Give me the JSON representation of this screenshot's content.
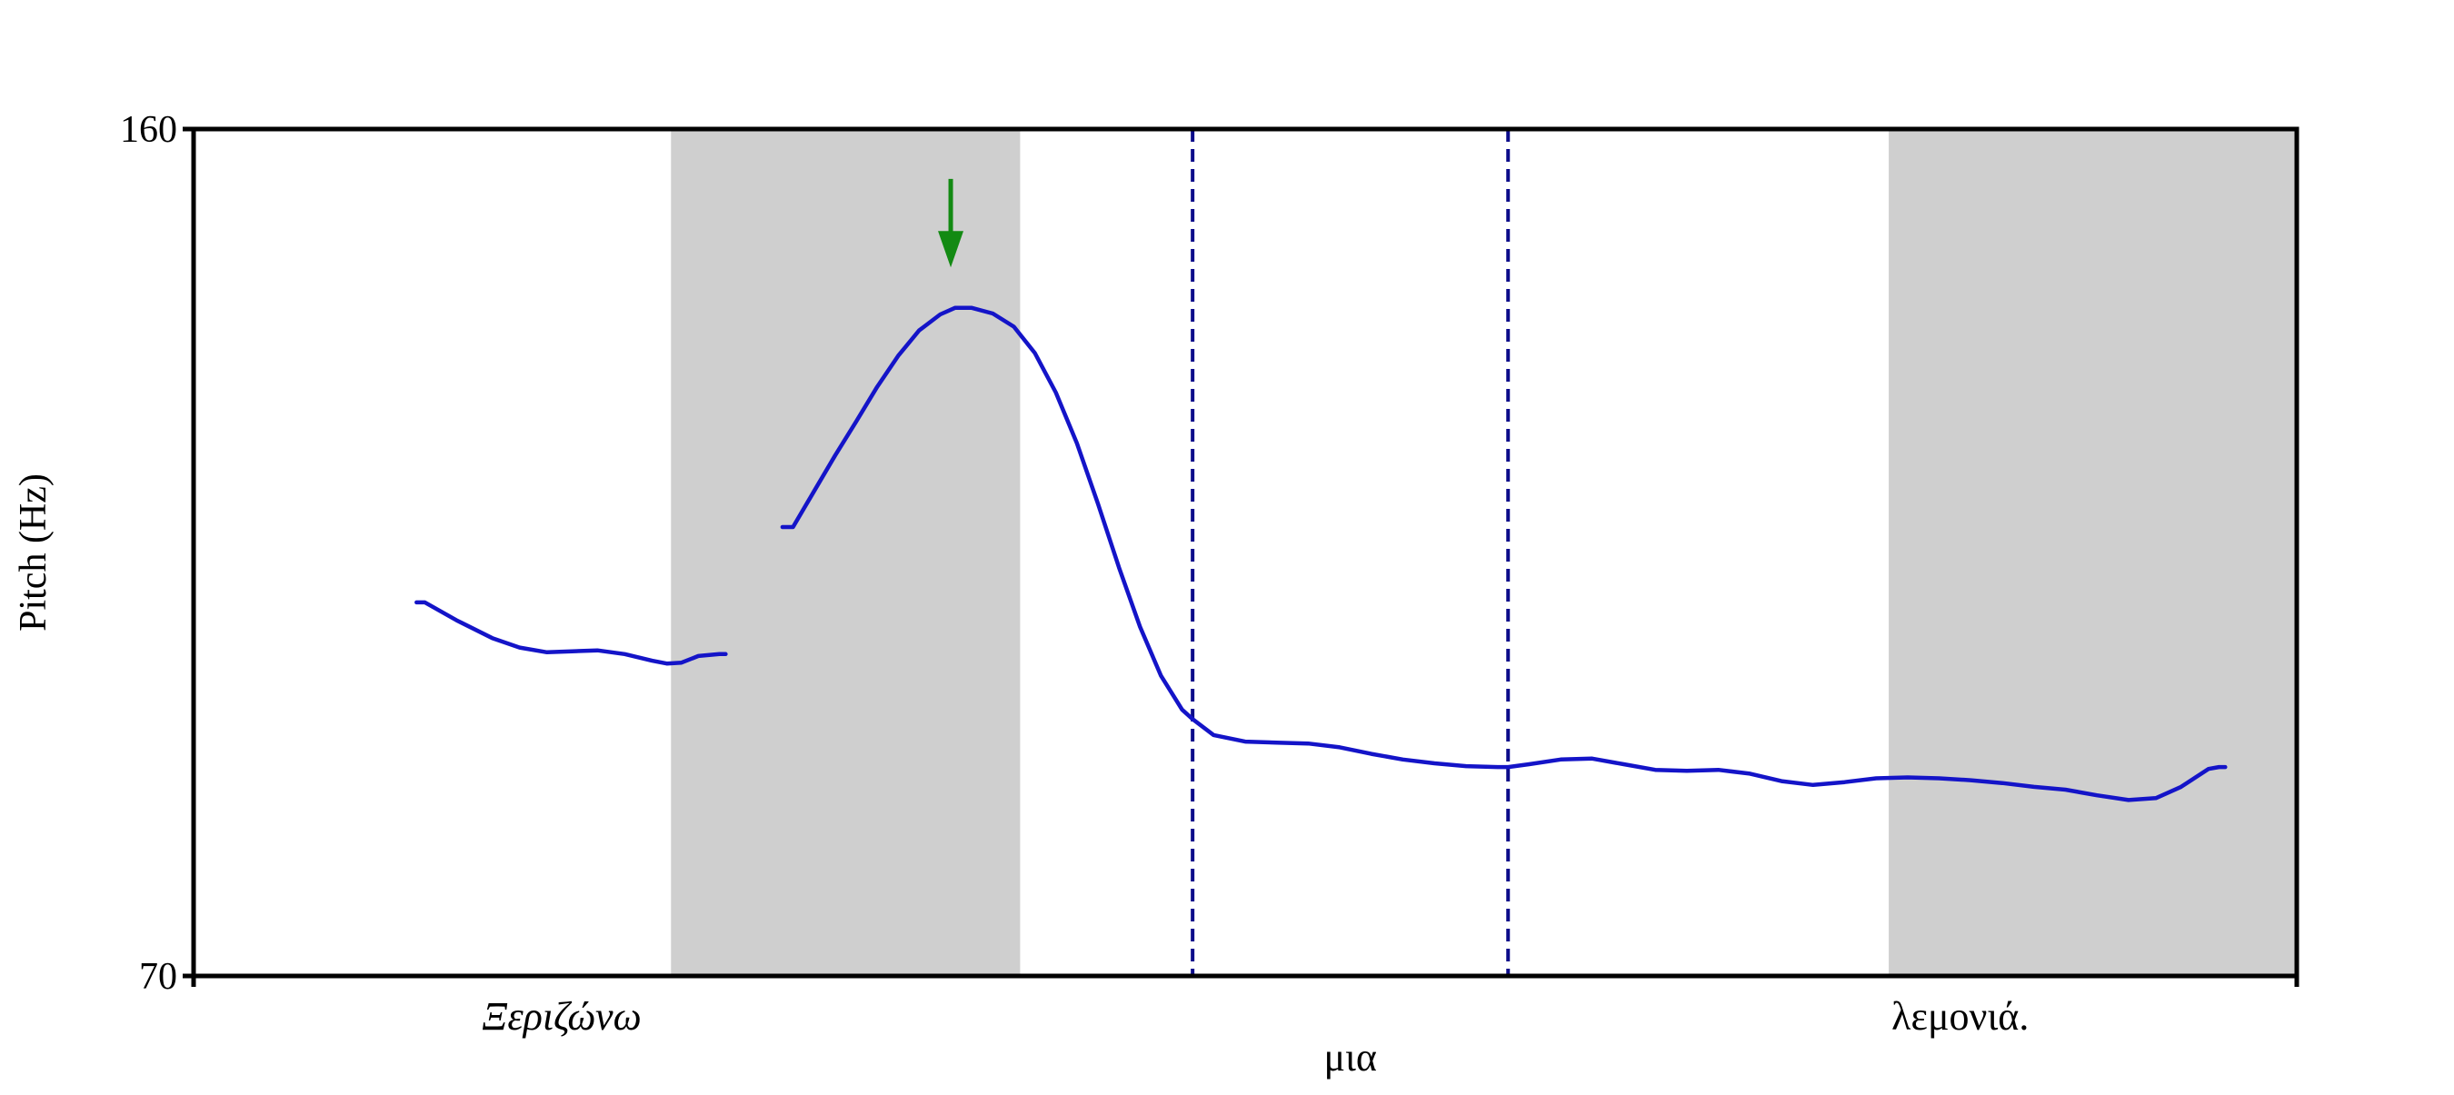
{
  "chart_data": {
    "type": "line",
    "title": "",
    "xlabel": "",
    "ylabel": "Pitch (Hz)",
    "ylim": [
      70,
      160
    ],
    "xlim": [
      0,
      100
    ],
    "y_tick_labels": [
      "160",
      "70"
    ],
    "y_ticks": [
      160,
      70
    ],
    "grid": false,
    "legend": "none",
    "colors": {
      "pitch": "#1414c8",
      "shade": "#cfcfcf",
      "boundary": "#0b0b8a",
      "arrow": "#138a13",
      "axis": "#000000"
    },
    "shaded_regions": [
      {
        "start": 22.7,
        "end": 39.3
      },
      {
        "start": 80.6,
        "end": 100
      }
    ],
    "boundaries": [
      47.5,
      62.5
    ],
    "arrow_marker": {
      "x": 36.0,
      "y_top": 154.7,
      "y_tip": 145.3
    },
    "words": [
      {
        "text": "Ξεριζώνω",
        "x": 17.5,
        "row": 1,
        "italic": true
      },
      {
        "text": "μια",
        "x": 55.0,
        "row": 2,
        "italic": false
      },
      {
        "text": "λεμονιά.",
        "x": 84.0,
        "row": 1,
        "italic": false
      }
    ],
    "series": [
      {
        "segments": [
          [
            [
              10.6,
              109.7
            ],
            [
              11.0,
              109.7
            ],
            [
              12.5,
              107.8
            ],
            [
              14.2,
              105.9
            ],
            [
              15.5,
              104.9
            ],
            [
              16.8,
              104.4
            ],
            [
              18.0,
              104.5
            ],
            [
              19.2,
              104.6
            ],
            [
              20.5,
              104.2
            ],
            [
              21.8,
              103.5
            ],
            [
              22.5,
              103.2
            ],
            [
              23.2,
              103.3
            ],
            [
              24.0,
              104.0
            ],
            [
              25.0,
              104.2
            ],
            [
              25.3,
              104.2
            ]
          ],
          [
            [
              28.0,
              117.7
            ],
            [
              28.5,
              117.7
            ],
            [
              29.5,
              121.5
            ],
            [
              30.5,
              125.3
            ],
            [
              31.5,
              128.9
            ],
            [
              32.5,
              132.6
            ],
            [
              33.5,
              135.9
            ],
            [
              34.5,
              138.6
            ],
            [
              35.5,
              140.3
            ],
            [
              36.2,
              141.0
            ],
            [
              37.0,
              141.0
            ],
            [
              38.0,
              140.4
            ],
            [
              39.0,
              139.0
            ],
            [
              40.0,
              136.2
            ],
            [
              41.0,
              132.0
            ],
            [
              42.0,
              126.6
            ],
            [
              43.0,
              120.2
            ],
            [
              44.0,
              113.4
            ],
            [
              45.0,
              107.1
            ],
            [
              46.0,
              101.9
            ],
            [
              47.0,
              98.3
            ],
            [
              47.5,
              97.3
            ],
            [
              48.5,
              95.6
            ],
            [
              50.0,
              94.9
            ],
            [
              51.5,
              94.8
            ],
            [
              53.0,
              94.7
            ],
            [
              54.5,
              94.3
            ],
            [
              56.0,
              93.6
            ],
            [
              57.5,
              93.0
            ],
            [
              59.0,
              92.6
            ],
            [
              60.5,
              92.3
            ],
            [
              62.0,
              92.2
            ],
            [
              62.5,
              92.2
            ],
            [
              63.5,
              92.5
            ],
            [
              65.0,
              93.0
            ],
            [
              66.5,
              93.1
            ],
            [
              68.0,
              92.5
            ],
            [
              69.5,
              91.9
            ],
            [
              71.0,
              91.8
            ],
            [
              72.5,
              91.9
            ],
            [
              74.0,
              91.5
            ],
            [
              75.5,
              90.7
            ],
            [
              77.0,
              90.3
            ],
            [
              78.5,
              90.6
            ],
            [
              80.0,
              91.0
            ],
            [
              81.5,
              91.1
            ],
            [
              83.0,
              91.0
            ],
            [
              84.5,
              90.8
            ],
            [
              86.0,
              90.5
            ],
            [
              87.5,
              90.1
            ],
            [
              89.0,
              89.8
            ],
            [
              90.5,
              89.2
            ],
            [
              92.0,
              88.7
            ],
            [
              93.3,
              88.9
            ],
            [
              94.5,
              90.1
            ],
            [
              95.8,
              92.0
            ],
            [
              96.3,
              92.2
            ],
            [
              96.6,
              92.2
            ]
          ]
        ]
      }
    ]
  }
}
